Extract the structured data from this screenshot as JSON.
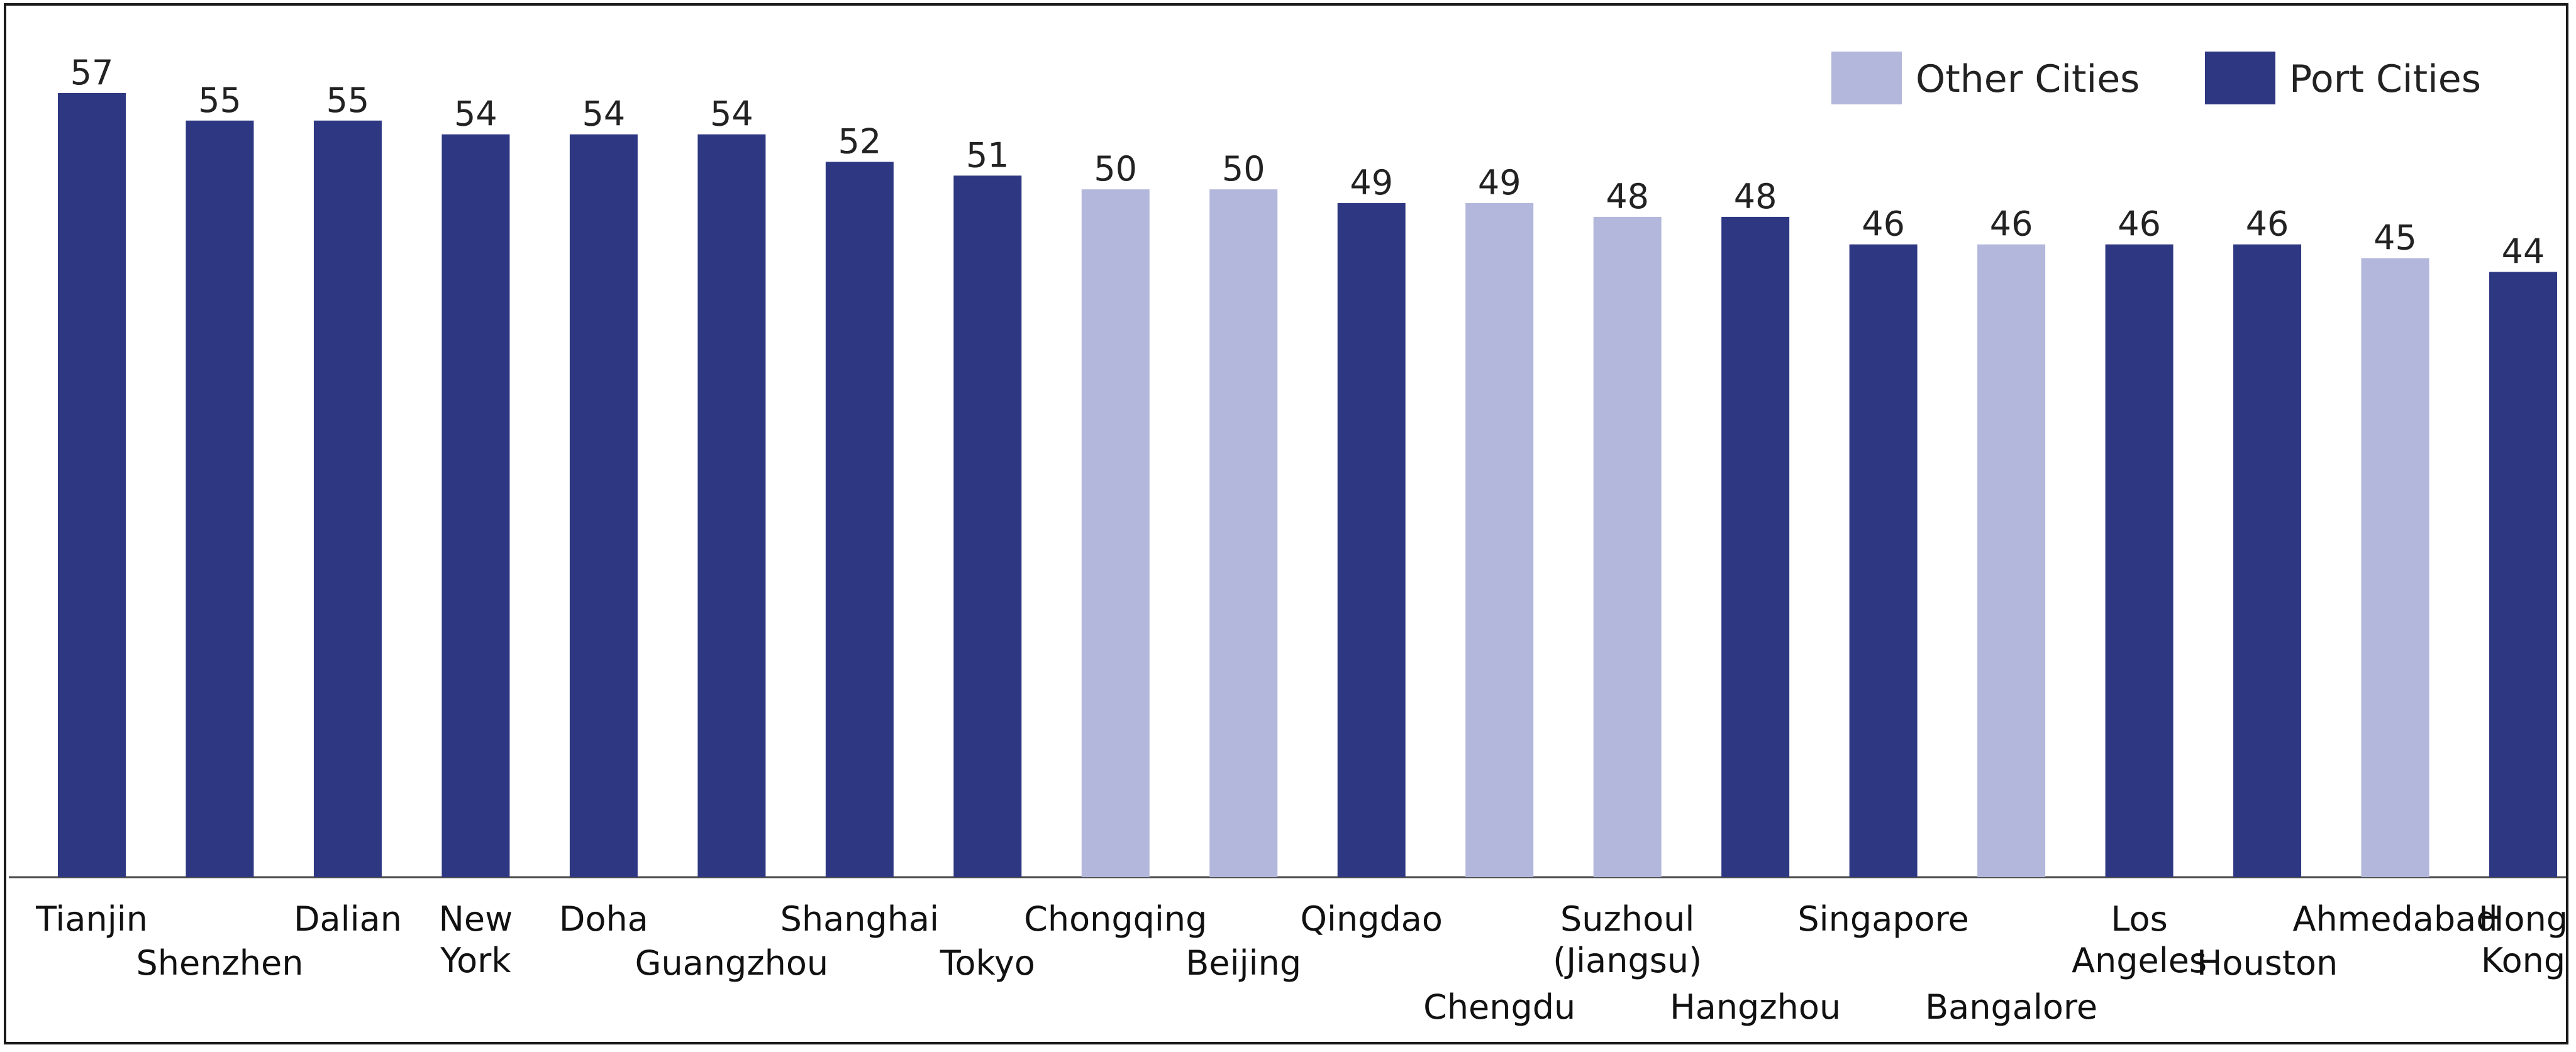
{
  "chart_data": {
    "type": "bar",
    "categories": [
      [
        "Tianjin"
      ],
      [
        "Shenzhen"
      ],
      [
        "Dalian"
      ],
      [
        "New",
        "York"
      ],
      [
        "Doha"
      ],
      [
        "Guangzhou"
      ],
      [
        "Shanghai"
      ],
      [
        "Tokyo"
      ],
      [
        "Chongqing"
      ],
      [
        "Beijing"
      ],
      [
        "Qingdao"
      ],
      [
        "Chengdu"
      ],
      [
        "Suzhoul",
        "(Jiangsu)"
      ],
      [
        "Hangzhou"
      ],
      [
        "Singapore"
      ],
      [
        "Bangalore"
      ],
      [
        "Los",
        "Angeles"
      ],
      [
        "Houston"
      ],
      [
        "Ahmedabad"
      ],
      [
        "Hong",
        "Kong"
      ]
    ],
    "values": [
      57,
      55,
      55,
      54,
      54,
      54,
      52,
      51,
      50,
      50,
      49,
      49,
      48,
      48,
      46,
      46,
      46,
      46,
      45,
      44
    ],
    "groups": [
      "Port Cities",
      "Port Cities",
      "Port Cities",
      "Port Cities",
      "Port Cities",
      "Port Cities",
      "Port Cities",
      "Port Cities",
      "Other Cities",
      "Other Cities",
      "Port Cities",
      "Other Cities",
      "Other Cities",
      "Port Cities",
      "Port Cities",
      "Other Cities",
      "Port Cities",
      "Port Cities",
      "Other Cities",
      "Port Cities"
    ],
    "label_row": [
      0,
      1,
      0,
      0,
      0,
      1,
      0,
      1,
      0,
      1,
      0,
      2,
      0,
      2,
      0,
      2,
      0,
      1,
      0,
      0
    ],
    "legend": [
      {
        "name": "Other Cities",
        "color": "#b3b7dc"
      },
      {
        "name": "Port Cities",
        "color": "#2e3882"
      }
    ],
    "legend_position": "top-right",
    "ylim": [
      0,
      57
    ],
    "grid": false,
    "title": "",
    "xlabel": "",
    "ylabel": ""
  }
}
